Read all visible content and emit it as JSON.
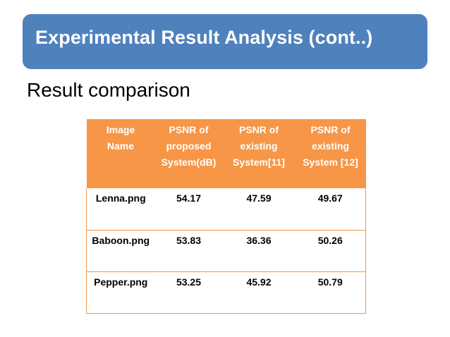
{
  "slide": {
    "title": "Experimental Result Analysis (cont..)",
    "subtitle": "Result comparison"
  },
  "colors": {
    "banner": "#4f81bd",
    "table_header": "#f79646",
    "table_border": "#f79646"
  },
  "table": {
    "headers": [
      "Image\nName",
      "PSNR of\nproposed\nSystem(dB)",
      "PSNR  of\nexisting\nSystem[11]",
      "PSNR  of\nexisting\nSystem [12]"
    ],
    "rows": [
      [
        "Lenna.png",
        "54.17",
        "47.59",
        "49.67"
      ],
      [
        "Baboon.png",
        "53.83",
        "36.36",
        "50.26"
      ],
      [
        "Pepper.png",
        "53.25",
        "45.92",
        "50.79"
      ]
    ]
  }
}
